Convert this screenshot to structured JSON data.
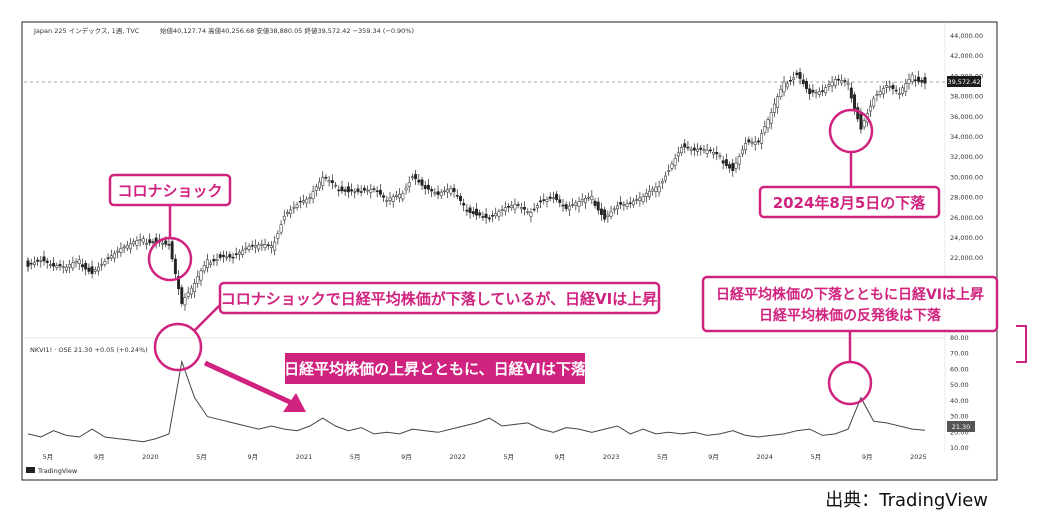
{
  "header": {
    "title": "Japan 225 インデックス, 1週, TVC",
    "ohlc": "始値40,127.74 高値40,256.68 安値38,880.05 終値39,572.42 −359.34 (−0.90%)"
  },
  "source_credit": "出典：TradingView",
  "tv_logo_text": "TradingView",
  "vi_header": "NKVI1! · OSE  21.30  +0.05 (+0.24%)",
  "price_label": "39,572.42",
  "vi_label": "21.30",
  "annotations": {
    "corona_shock": "コロナショック",
    "aug5": "2024年8月5日の下落",
    "corona_vi": "コロナショックで日経平均株価が下落しているが、日経VIは上昇",
    "rise_vi_down": "日経平均株価の上昇とともに、日経VIは下落",
    "drop_line1": "日経平均株価の下落とともに日経VIは上昇",
    "drop_line2": "日経平均株価の反発後は下落"
  },
  "colors": {
    "accent": "#d0237f",
    "candle": "#222222",
    "vi_line": "#444444",
    "grid_text": "#333333"
  },
  "chart_data": [
    {
      "type": "candlestick",
      "title": "Japan 225 インデックス, 1週, TVC",
      "ylim": [
        20000,
        44000
      ],
      "y_ticks": [
        "22,000.00",
        "24,000.00",
        "26,000.00",
        "28,000.00",
        "30,000.00",
        "32,000.00",
        "34,000.00",
        "36,000.00",
        "38,000.00",
        "40,000.00",
        "42,000.00",
        "44,000.00"
      ],
      "x_ticks": [
        "5月",
        "9月",
        "2020",
        "5月",
        "9月",
        "2021",
        "5月",
        "9月",
        "2022",
        "5月",
        "9月",
        "2023",
        "5月",
        "9月",
        "2024",
        "5月",
        "9月",
        "2025"
      ],
      "last_value": 39572.42,
      "series": [
        {
          "x": "2019-03",
          "v": 21500
        },
        {
          "x": "2019-04",
          "v": 21900
        },
        {
          "x": "2019-05",
          "v": 21200
        },
        {
          "x": "2019-06",
          "v": 21000
        },
        {
          "x": "2019-07",
          "v": 21600
        },
        {
          "x": "2019-08",
          "v": 20700
        },
        {
          "x": "2019-09",
          "v": 21800
        },
        {
          "x": "2019-10",
          "v": 22700
        },
        {
          "x": "2019-11",
          "v": 23300
        },
        {
          "x": "2019-12",
          "v": 23700
        },
        {
          "x": "2020-01",
          "v": 23800
        },
        {
          "x": "2020-02",
          "v": 23400
        },
        {
          "x": "2020-03",
          "v": 17500
        },
        {
          "x": "2020-04",
          "v": 19400
        },
        {
          "x": "2020-05",
          "v": 21600
        },
        {
          "x": "2020-06",
          "v": 22300
        },
        {
          "x": "2020-07",
          "v": 22200
        },
        {
          "x": "2020-08",
          "v": 23000
        },
        {
          "x": "2020-09",
          "v": 23200
        },
        {
          "x": "2020-10",
          "v": 23000
        },
        {
          "x": "2020-11",
          "v": 26400
        },
        {
          "x": "2020-12",
          "v": 27400
        },
        {
          "x": "2021-01",
          "v": 28000
        },
        {
          "x": "2021-02",
          "v": 29900
        },
        {
          "x": "2021-03",
          "v": 29000
        },
        {
          "x": "2021-04",
          "v": 28800
        },
        {
          "x": "2021-05",
          "v": 28700
        },
        {
          "x": "2021-06",
          "v": 28800
        },
        {
          "x": "2021-07",
          "v": 27600
        },
        {
          "x": "2021-08",
          "v": 28100
        },
        {
          "x": "2021-09",
          "v": 30300
        },
        {
          "x": "2021-10",
          "v": 29000
        },
        {
          "x": "2021-11",
          "v": 28300
        },
        {
          "x": "2021-12",
          "v": 28800
        },
        {
          "x": "2022-01",
          "v": 27000
        },
        {
          "x": "2022-02",
          "v": 26500
        },
        {
          "x": "2022-03",
          "v": 26000
        },
        {
          "x": "2022-04",
          "v": 26800
        },
        {
          "x": "2022-05",
          "v": 27200
        },
        {
          "x": "2022-06",
          "v": 26400
        },
        {
          "x": "2022-07",
          "v": 27800
        },
        {
          "x": "2022-08",
          "v": 28100
        },
        {
          "x": "2022-09",
          "v": 26900
        },
        {
          "x": "2022-10",
          "v": 27500
        },
        {
          "x": "2022-11",
          "v": 27900
        },
        {
          "x": "2022-12",
          "v": 26100
        },
        {
          "x": "2023-01",
          "v": 27300
        },
        {
          "x": "2023-02",
          "v": 27400
        },
        {
          "x": "2023-03",
          "v": 28000
        },
        {
          "x": "2023-04",
          "v": 28800
        },
        {
          "x": "2023-05",
          "v": 30900
        },
        {
          "x": "2023-06",
          "v": 33100
        },
        {
          "x": "2023-07",
          "v": 32700
        },
        {
          "x": "2023-08",
          "v": 32600
        },
        {
          "x": "2023-09",
          "v": 31900
        },
        {
          "x": "2023-10",
          "v": 30900
        },
        {
          "x": "2023-11",
          "v": 33500
        },
        {
          "x": "2023-12",
          "v": 33500
        },
        {
          "x": "2024-01",
          "v": 36300
        },
        {
          "x": "2024-02",
          "v": 39200
        },
        {
          "x": "2024-03",
          "v": 40400
        },
        {
          "x": "2024-04",
          "v": 38400
        },
        {
          "x": "2024-05",
          "v": 38500
        },
        {
          "x": "2024-06",
          "v": 39600
        },
        {
          "x": "2024-07",
          "v": 39100
        },
        {
          "x": "2024-08",
          "v": 35000
        },
        {
          "x": "2024-09",
          "v": 37900
        },
        {
          "x": "2024-10",
          "v": 39100
        },
        {
          "x": "2024-11",
          "v": 38200
        },
        {
          "x": "2024-12",
          "v": 39900
        },
        {
          "x": "2025-01",
          "v": 39572
        }
      ]
    },
    {
      "type": "line",
      "title": "NKVI1! · OSE",
      "ylim": [
        10,
        80
      ],
      "y_ticks": [
        "10.00",
        "20.00",
        "30.00",
        "40.00",
        "50.00",
        "60.00",
        "70.00",
        "80.00"
      ],
      "last_value": 21.3,
      "series": [
        {
          "x": "2019-03",
          "v": 19
        },
        {
          "x": "2019-04",
          "v": 17
        },
        {
          "x": "2019-05",
          "v": 21
        },
        {
          "x": "2019-06",
          "v": 18
        },
        {
          "x": "2019-07",
          "v": 17
        },
        {
          "x": "2019-08",
          "v": 22
        },
        {
          "x": "2019-09",
          "v": 17
        },
        {
          "x": "2019-10",
          "v": 16
        },
        {
          "x": "2019-11",
          "v": 15
        },
        {
          "x": "2019-12",
          "v": 14
        },
        {
          "x": "2020-01",
          "v": 16
        },
        {
          "x": "2020-02",
          "v": 19
        },
        {
          "x": "2020-03",
          "v": 65
        },
        {
          "x": "2020-04",
          "v": 42
        },
        {
          "x": "2020-05",
          "v": 30
        },
        {
          "x": "2020-06",
          "v": 28
        },
        {
          "x": "2020-07",
          "v": 26
        },
        {
          "x": "2020-08",
          "v": 24
        },
        {
          "x": "2020-09",
          "v": 22
        },
        {
          "x": "2020-10",
          "v": 24
        },
        {
          "x": "2020-11",
          "v": 22
        },
        {
          "x": "2020-12",
          "v": 21
        },
        {
          "x": "2021-01",
          "v": 24
        },
        {
          "x": "2021-02",
          "v": 29
        },
        {
          "x": "2021-03",
          "v": 24
        },
        {
          "x": "2021-04",
          "v": 21
        },
        {
          "x": "2021-05",
          "v": 23
        },
        {
          "x": "2021-06",
          "v": 19
        },
        {
          "x": "2021-07",
          "v": 20
        },
        {
          "x": "2021-08",
          "v": 19
        },
        {
          "x": "2021-09",
          "v": 22
        },
        {
          "x": "2021-10",
          "v": 21
        },
        {
          "x": "2021-11",
          "v": 20
        },
        {
          "x": "2021-12",
          "v": 22
        },
        {
          "x": "2022-01",
          "v": 24
        },
        {
          "x": "2022-02",
          "v": 26
        },
        {
          "x": "2022-03",
          "v": 29
        },
        {
          "x": "2022-04",
          "v": 24
        },
        {
          "x": "2022-05",
          "v": 25
        },
        {
          "x": "2022-06",
          "v": 26
        },
        {
          "x": "2022-07",
          "v": 22
        },
        {
          "x": "2022-08",
          "v": 20
        },
        {
          "x": "2022-09",
          "v": 23
        },
        {
          "x": "2022-10",
          "v": 22
        },
        {
          "x": "2022-11",
          "v": 20
        },
        {
          "x": "2022-12",
          "v": 22
        },
        {
          "x": "2023-01",
          "v": 24
        },
        {
          "x": "2023-02",
          "v": 19
        },
        {
          "x": "2023-03",
          "v": 22
        },
        {
          "x": "2023-04",
          "v": 19
        },
        {
          "x": "2023-05",
          "v": 20
        },
        {
          "x": "2023-06",
          "v": 19
        },
        {
          "x": "2023-07",
          "v": 20
        },
        {
          "x": "2023-08",
          "v": 18
        },
        {
          "x": "2023-09",
          "v": 19
        },
        {
          "x": "2023-10",
          "v": 21
        },
        {
          "x": "2023-11",
          "v": 18
        },
        {
          "x": "2023-12",
          "v": 17
        },
        {
          "x": "2024-01",
          "v": 18
        },
        {
          "x": "2024-02",
          "v": 19
        },
        {
          "x": "2024-03",
          "v": 21
        },
        {
          "x": "2024-04",
          "v": 22
        },
        {
          "x": "2024-05",
          "v": 18
        },
        {
          "x": "2024-06",
          "v": 19
        },
        {
          "x": "2024-07",
          "v": 22
        },
        {
          "x": "2024-08",
          "v": 42
        },
        {
          "x": "2024-09",
          "v": 27
        },
        {
          "x": "2024-10",
          "v": 26
        },
        {
          "x": "2024-11",
          "v": 24
        },
        {
          "x": "2024-12",
          "v": 22
        },
        {
          "x": "2025-01",
          "v": 21.3
        }
      ]
    }
  ]
}
